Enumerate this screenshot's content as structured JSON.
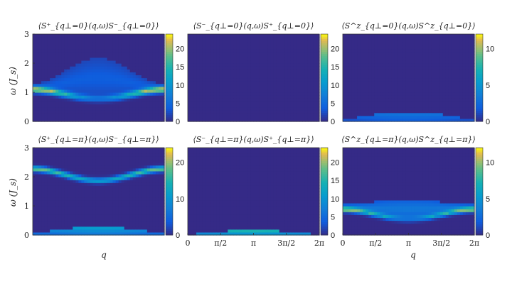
{
  "figure": {
    "ylabel": "ω (J_s)",
    "xlabel": "q"
  },
  "chart_data": [
    {
      "type": "heatmap",
      "id": "p11",
      "title": "⟨S⁺_{q⊥=0}(q,ω)S⁻_{q⊥=0}⟩",
      "xlabel": "",
      "ylabel": "ω (J_s)",
      "xlim": [
        0,
        6.2832
      ],
      "ylim": [
        0,
        3
      ],
      "yticks": [
        "0",
        "1",
        "2",
        "3"
      ],
      "xticks": [],
      "colorbar": {
        "range": [
          0,
          24
        ],
        "ticks": [
          "0",
          "5",
          "10",
          "15",
          "20"
        ]
      },
      "features": [
        {
          "kind": "band",
          "omega_at_0": 1.1,
          "omega_at_pi": 0.78,
          "peak_intensity": 22,
          "min_intensity": 6,
          "width": 0.07
        },
        {
          "kind": "continuum",
          "omega_at_0": 1.3,
          "omega_at_pi": 2.2,
          "lower_edge_at_pi": 0.8,
          "intensity": 4
        }
      ]
    },
    {
      "type": "heatmap",
      "id": "p12",
      "title": "⟨S⁻_{q⊥=0}(q,ω)S⁺_{q⊥=0}⟩",
      "xlabel": "",
      "ylabel": "",
      "xlim": [
        0,
        6.2832
      ],
      "ylim": [
        0,
        3
      ],
      "yticks": [],
      "xticks": [],
      "colorbar": {
        "range": [
          0,
          24
        ],
        "ticks": [
          "0",
          "5",
          "10",
          "15",
          "20"
        ]
      },
      "features": []
    },
    {
      "type": "heatmap",
      "id": "p13",
      "title": "⟨S^z_{q⊥=0}(q,ω)S^z_{q⊥=0}⟩",
      "xlabel": "",
      "ylabel": "",
      "xlim": [
        0,
        6.2832
      ],
      "ylim": [
        0,
        3
      ],
      "yticks": [],
      "xticks": [],
      "colorbar": {
        "range": [
          0,
          12
        ],
        "ticks": [
          "0",
          "5",
          "10"
        ]
      },
      "features": [
        {
          "kind": "dome",
          "omega_at_0": 0.05,
          "omega_at_pi": 0.35,
          "peak_intensity": 3.5
        }
      ]
    },
    {
      "type": "heatmap",
      "id": "p21",
      "title": "⟨S⁺_{q⊥=π}(q,ω)S⁻_{q⊥=π}⟩",
      "xlabel": "",
      "ylabel": "ω (J_s)",
      "xlim": [
        0,
        6.2832
      ],
      "ylim": [
        0,
        3
      ],
      "yticks": [
        "0",
        "1",
        "2",
        "3"
      ],
      "xticks": [],
      "colorbar": {
        "range": [
          0,
          24
        ],
        "ticks": [
          "0",
          "10",
          "20"
        ]
      },
      "features": [
        {
          "kind": "band",
          "omega_at_0": 2.28,
          "omega_at_pi": 1.88,
          "peak_intensity": 19,
          "min_intensity": 12,
          "width": 0.06
        },
        {
          "kind": "dome",
          "omega_at_0": 0.05,
          "omega_at_pi": 0.3,
          "peak_intensity": 12
        }
      ]
    },
    {
      "type": "heatmap",
      "id": "p22",
      "title": "⟨S⁻_{q⊥=π}(q,ω)S⁺_{q⊥=π}⟩",
      "xlabel": "q",
      "ylabel": "",
      "xlim": [
        0,
        6.2832
      ],
      "ylim": [
        0,
        3
      ],
      "yticks": [],
      "xticks": [
        "0",
        "π/2",
        "π",
        "3π/2",
        "2π"
      ],
      "colorbar": {
        "range": [
          0,
          24
        ],
        "ticks": [
          "0",
          "5",
          "10",
          "15",
          "20"
        ]
      },
      "features": [
        {
          "kind": "dome",
          "omega_at_0": 0.02,
          "omega_at_pi": 0.18,
          "peak_intensity": 16
        }
      ]
    },
    {
      "type": "heatmap",
      "id": "p23",
      "title": "⟨S^z_{q⊥=π}(q,ω)S^z_{q⊥=π}⟩",
      "xlabel": "",
      "ylabel": "",
      "xlim": [
        0,
        6.2832
      ],
      "ylim": [
        0,
        3
      ],
      "yticks": [],
      "xticks": [
        "0",
        "π/2",
        "π",
        "3π/2",
        "2π"
      ],
      "colorbar": {
        "range": [
          0,
          12
        ],
        "ticks": [
          "0",
          "5",
          "10"
        ]
      },
      "features": [
        {
          "kind": "band",
          "omega_at_0": 0.88,
          "omega_at_pi": 0.55,
          "peak_intensity": 8,
          "min_intensity": 3,
          "width": 0.06
        },
        {
          "kind": "continuum",
          "omega_at_0": 1.05,
          "omega_at_pi": 1.25,
          "lower_edge_at_pi": 0.55,
          "intensity": 3.5
        }
      ]
    }
  ]
}
